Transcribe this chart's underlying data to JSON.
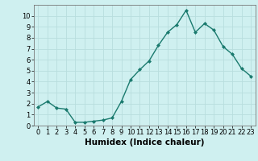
{
  "x": [
    0,
    1,
    2,
    3,
    4,
    5,
    6,
    7,
    8,
    9,
    10,
    11,
    12,
    13,
    14,
    15,
    16,
    17,
    18,
    19,
    20,
    21,
    22,
    23
  ],
  "y": [
    1.7,
    2.2,
    1.6,
    1.5,
    0.3,
    0.3,
    0.4,
    0.5,
    0.7,
    2.2,
    4.2,
    5.1,
    5.9,
    7.3,
    8.5,
    9.2,
    10.5,
    8.5,
    9.3,
    8.7,
    7.2,
    6.5,
    5.2,
    4.5
  ],
  "line_color": "#1a7a6e",
  "marker": "D",
  "marker_size": 2,
  "bg_color": "#cff0f0",
  "grid_color": "#b8dede",
  "xlabel": "Humidex (Indice chaleur)",
  "xlim": [
    -0.5,
    23.5
  ],
  "ylim": [
    0,
    11
  ],
  "yticks": [
    0,
    1,
    2,
    3,
    4,
    5,
    6,
    7,
    8,
    9,
    10
  ],
  "xticks": [
    0,
    1,
    2,
    3,
    4,
    5,
    6,
    7,
    8,
    9,
    10,
    11,
    12,
    13,
    14,
    15,
    16,
    17,
    18,
    19,
    20,
    21,
    22,
    23
  ],
  "tick_label_fontsize": 6,
  "xlabel_fontsize": 7.5,
  "line_width": 1.0
}
